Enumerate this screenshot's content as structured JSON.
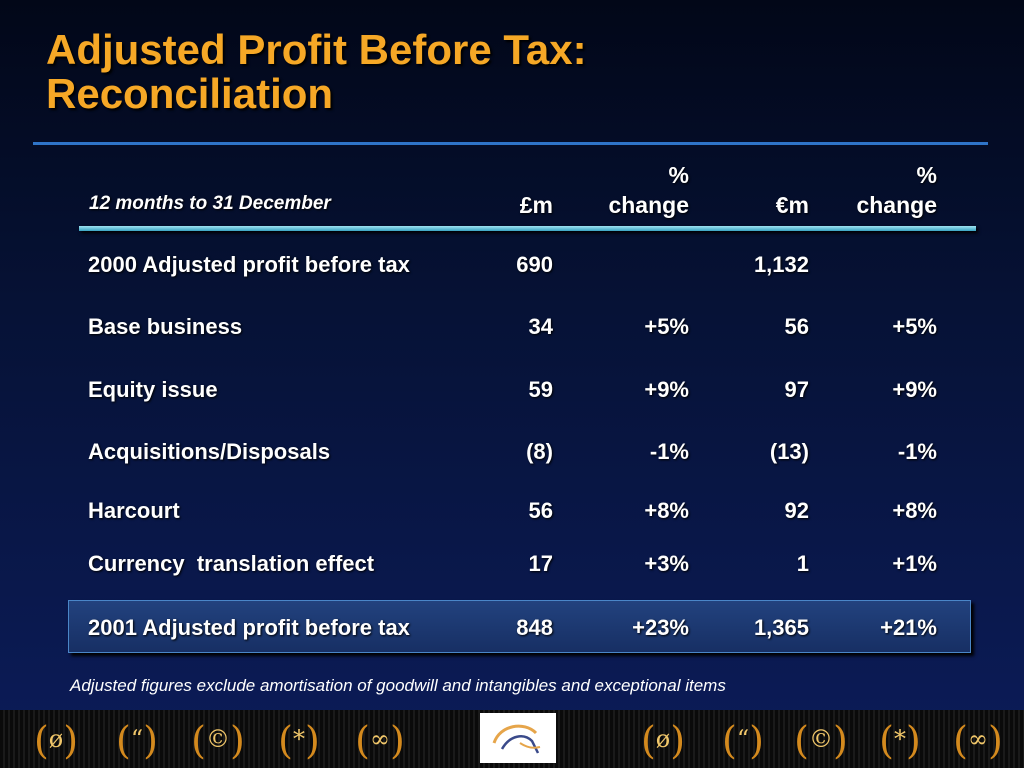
{
  "title": {
    "line1": "Adjusted Profit Before Tax:",
    "line2": "Reconciliation"
  },
  "table": {
    "period_label": "12 months to 31 December",
    "headers": [
      {
        "line1": "",
        "line2": "£m"
      },
      {
        "line1": "%",
        "line2": "change"
      },
      {
        "line1": "",
        "line2": "€m"
      },
      {
        "line1": "%",
        "line2": "change"
      }
    ],
    "rows": [
      {
        "label": "2000 Adjusted profit before tax",
        "gbp": "690",
        "gbp_change": "",
        "eur": "1,132",
        "eur_change": ""
      },
      {
        "label": "Base business",
        "gbp": "34",
        "gbp_change": "+5%",
        "eur": "56",
        "eur_change": "+5%"
      },
      {
        "label": "Equity issue",
        "gbp": "59",
        "gbp_change": "+9%",
        "eur": "97",
        "eur_change": "+9%"
      },
      {
        "label": "Acquisitions/Disposals",
        "gbp": "(8)",
        "gbp_change": "-1%",
        "eur": "(13)",
        "eur_change": "-1%"
      },
      {
        "label": "Harcourt",
        "gbp": "56",
        "gbp_change": "+8%",
        "eur": "92",
        "eur_change": "+8%"
      },
      {
        "label": "Currency  translation effect",
        "gbp": "17",
        "gbp_change": "+3%",
        "eur": "1",
        "eur_change": "+1%"
      }
    ],
    "total": {
      "label": "2001 Adjusted profit before tax",
      "gbp": "848",
      "gbp_change": "+23%",
      "eur": "1,365",
      "eur_change": "+21%"
    }
  },
  "footnote": "Adjusted figures exclude amortisation of goodwill and intangibles and exceptional items",
  "footer": {
    "left_glyphs": [
      "ø",
      "“",
      "©",
      "*",
      "∞"
    ],
    "right_glyphs": [
      "ø",
      "“",
      "©",
      "*",
      "∞"
    ],
    "logo": "company-logo"
  },
  "colors": {
    "title": "#f6a826",
    "rule": "#2f74c8",
    "header_rule": "#6cc8e0",
    "total_box": "#1e3a74"
  }
}
